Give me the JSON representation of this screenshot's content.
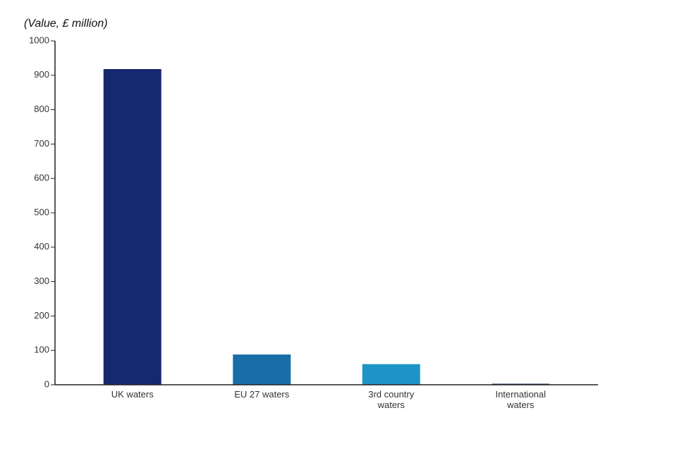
{
  "chart_data": {
    "type": "bar",
    "y_label": "(Value, £ million)",
    "categories": [
      "UK waters",
      "EU 27 waters",
      "3rd country waters",
      "International waters"
    ],
    "values": [
      918,
      88,
      60,
      3
    ],
    "colors": [
      "#162870",
      "#1a6ea8",
      "#1e95c6",
      "#1b3a6b"
    ],
    "ylim": [
      0,
      1000
    ],
    "yticks": [
      0,
      100,
      200,
      300,
      400,
      500,
      600,
      700,
      800,
      900,
      1000
    ],
    "grid": false
  }
}
